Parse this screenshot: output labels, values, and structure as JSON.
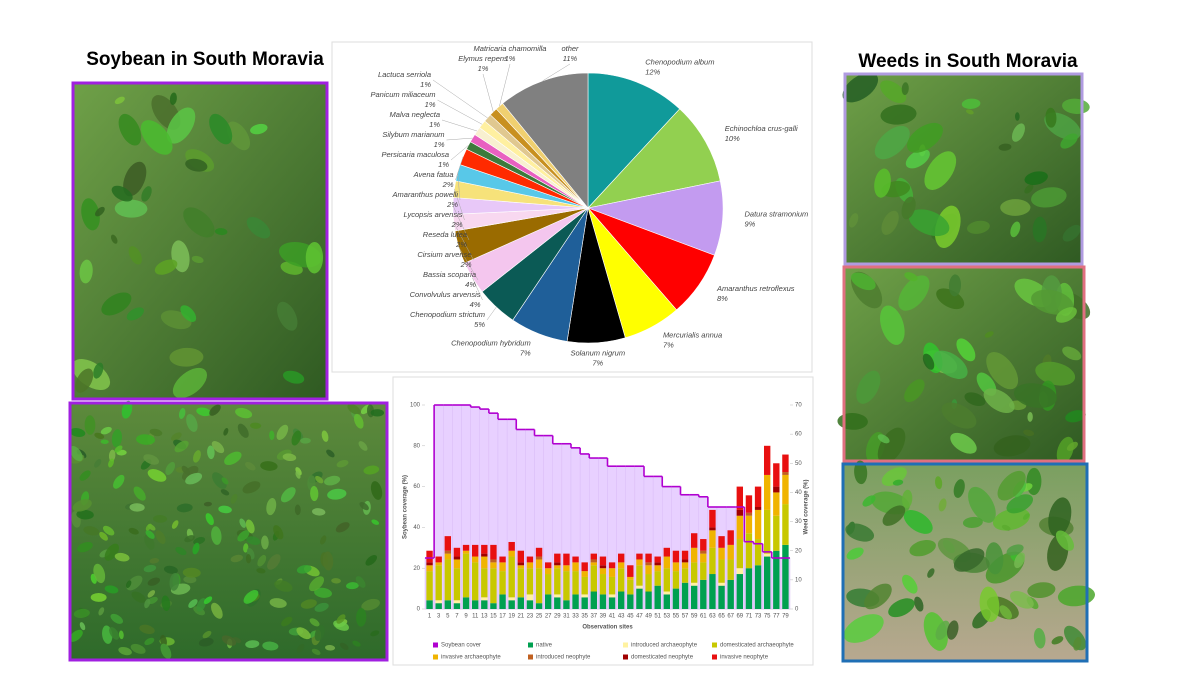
{
  "titles": {
    "left": "Soybean in South Moravia",
    "right": "Weeds in South Moravia"
  },
  "chart_data": [
    {
      "type": "pie",
      "categories": [
        "Chenopodium album",
        "Echinochloa crus-galli",
        "Datura stramonium",
        "Amaranthus retroflexus",
        "Mercurialis annua",
        "Solanum nigrum",
        "Chenopodium hybridum",
        "Chenopodium strictum",
        "Convolvulus arvensis",
        "Bassia scoparia",
        "Cirsium arvense",
        "Reseda lutea",
        "Lycopsis arvensis",
        "Amaranthus powelli",
        "Avena fatua",
        "Persicaria maculosa",
        "Silybum marianum",
        "Malva neglecta",
        "Panicum miliaceum",
        "Lactuca serriola",
        "Elymus repens",
        "Matricaria chamomilla",
        "other"
      ],
      "values": [
        12,
        10,
        9,
        8,
        7,
        7,
        7,
        5,
        4,
        4,
        2,
        2,
        2,
        2,
        2,
        1,
        1,
        1,
        1,
        1,
        1,
        1,
        11
      ],
      "value_labels": [
        "12%",
        "10%",
        "9%",
        "8%",
        "7%",
        "7%",
        "7%",
        "5%",
        "4%",
        "4%",
        "2%",
        "2%",
        "2%",
        "2%",
        "2%",
        "1%",
        "1%",
        "1%",
        "1%",
        "1%",
        "1%",
        "1%",
        "11%"
      ],
      "colors": [
        "#109a9a",
        "#92d050",
        "#c39bf0",
        "#ff0000",
        "#ffff00",
        "#000000",
        "#1f5f99",
        "#0b5a55",
        "#f4c6ee",
        "#9a6b00",
        "#f8d8f0",
        "#e8c8f8",
        "#f6e27a",
        "#58c8e8",
        "#ff2a00",
        "#3c7a3c",
        "#e860c0",
        "#f8f0d0",
        "#fff0a0",
        "#e0c890",
        "#c89020",
        "#f0d070",
        "#808080"
      ]
    },
    {
      "type": "bar",
      "stacked": true,
      "legend": "bottom",
      "x_label": "Observation sites",
      "y_label": "Soybean coverage (%)",
      "y2_label": "Weed coverage (%)",
      "categories": [
        "1",
        "3",
        "5",
        "7",
        "9",
        "11",
        "13",
        "15",
        "17",
        "19",
        "21",
        "23",
        "25",
        "27",
        "29",
        "31",
        "33",
        "35",
        "37",
        "39",
        "41",
        "43",
        "45",
        "47",
        "49",
        "51",
        "53",
        "55",
        "57",
        "59",
        "61",
        "63",
        "65",
        "67",
        "69",
        "71",
        "73",
        "75",
        "77",
        "79"
      ],
      "ylim": [
        0,
        100
      ],
      "yticks": [
        0,
        20,
        40,
        60,
        80,
        100
      ],
      "y2lim": [
        0,
        70
      ],
      "y2ticks": [
        0,
        10,
        20,
        30,
        40,
        50,
        60,
        70
      ],
      "series": [
        {
          "name": "Soybean cover",
          "type": "line",
          "color": "#b000d0",
          "values": [
            25,
            100,
            100,
            100,
            100,
            99,
            98,
            96,
            93,
            93,
            88,
            88,
            85,
            85,
            81,
            81,
            79,
            76,
            74,
            74,
            70,
            70,
            70,
            70,
            65,
            65,
            60,
            60,
            56,
            56,
            55,
            50,
            50,
            50,
            50,
            33,
            32,
            28,
            25,
            25
          ]
        },
        {
          "name": "native",
          "axis": "y2",
          "color": "#00a050",
          "values": [
            3,
            2,
            3,
            2,
            4,
            3,
            3,
            2,
            5,
            3,
            4,
            3,
            2,
            5,
            4,
            3,
            5,
            4,
            6,
            5,
            4,
            6,
            5,
            7,
            6,
            8,
            5,
            7,
            9,
            8,
            10,
            12,
            8,
            10,
            12,
            14,
            15,
            18,
            20,
            22
          ]
        },
        {
          "name": "introduced archaeophyte",
          "axis": "y2",
          "color": "#fff2a0",
          "values": [
            0,
            1,
            0,
            1,
            0,
            0,
            1,
            0,
            0,
            1,
            0,
            2,
            0,
            0,
            1,
            0,
            0,
            1,
            0,
            0,
            1,
            0,
            0,
            1,
            0,
            0,
            1,
            0,
            0,
            1,
            0,
            0,
            1,
            0,
            2,
            0,
            0,
            1,
            0,
            0
          ]
        },
        {
          "name": "domesticated archaeophyte",
          "axis": "y2",
          "color": "#c8c800",
          "values": [
            10,
            12,
            14,
            11,
            15,
            13,
            10,
            12,
            8,
            14,
            10,
            9,
            12,
            7,
            9,
            10,
            8,
            6,
            9,
            7,
            6,
            8,
            5,
            7,
            6,
            5,
            8,
            6,
            5,
            7,
            6,
            9,
            8,
            7,
            10,
            12,
            9,
            15,
            12,
            14
          ]
        },
        {
          "name": "invasive archaeophyte",
          "axis": "y2",
          "color": "#f0b400",
          "values": [
            2,
            1,
            2,
            3,
            1,
            2,
            4,
            2,
            3,
            2,
            1,
            2,
            3,
            2,
            1,
            2,
            3,
            2,
            1,
            2,
            3,
            2,
            1,
            2,
            3,
            2,
            4,
            3,
            2,
            5,
            3,
            6,
            4,
            5,
            8,
            6,
            10,
            12,
            8,
            10
          ]
        },
        {
          "name": "introduced neophyte",
          "axis": "y2",
          "color": "#c06020",
          "values": [
            0,
            0,
            1,
            0,
            0,
            0,
            0,
            1,
            0,
            0,
            0,
            0,
            1,
            0,
            0,
            0,
            0,
            0,
            1,
            0,
            0,
            0,
            0,
            0,
            1,
            0,
            0,
            0,
            0,
            0,
            1,
            0,
            0,
            0,
            0,
            1,
            0,
            0,
            0,
            1
          ]
        },
        {
          "name": "domesticated neophyte",
          "axis": "y2",
          "color": "#a00000",
          "values": [
            1,
            0,
            0,
            1,
            0,
            0,
            1,
            0,
            0,
            0,
            1,
            0,
            0,
            0,
            1,
            0,
            0,
            0,
            0,
            1,
            0,
            0,
            0,
            0,
            0,
            1,
            0,
            0,
            1,
            0,
            0,
            1,
            0,
            0,
            2,
            0,
            1,
            0,
            2,
            0
          ]
        },
        {
          "name": "invasive neophyte",
          "axis": "y2",
          "color": "#e81010",
          "values": [
            4,
            2,
            5,
            3,
            2,
            4,
            3,
            5,
            2,
            3,
            4,
            2,
            3,
            2,
            3,
            4,
            2,
            3,
            2,
            3,
            2,
            3,
            4,
            2,
            3,
            2,
            3,
            4,
            3,
            5,
            4,
            6,
            4,
            5,
            8,
            6,
            7,
            10,
            8,
            6
          ]
        }
      ]
    }
  ]
}
